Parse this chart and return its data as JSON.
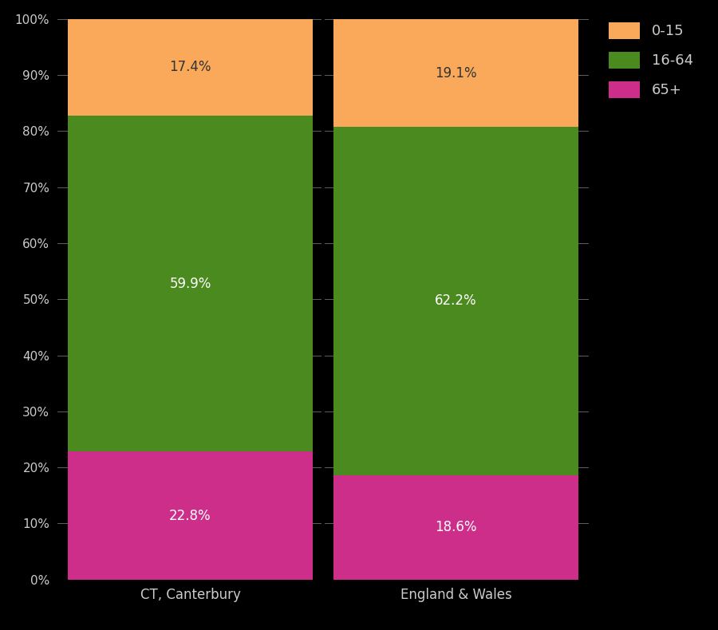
{
  "categories": [
    "CT, Canterbury",
    "England & Wales"
  ],
  "segments": {
    "65+": [
      22.8,
      18.6
    ],
    "16-64": [
      59.9,
      62.2
    ],
    "0-15": [
      17.4,
      19.1
    ]
  },
  "colors": {
    "65+": "#cc2e8a",
    "16-64": "#4a8a1e",
    "0-15": "#f9a959"
  },
  "segment_order": [
    "65+",
    "16-64",
    "0-15"
  ],
  "label_colors": {
    "65+": "white",
    "16-64": "white",
    "0-15": "#333333"
  },
  "background_color": "#000000",
  "text_color": "#cccccc",
  "yticks": [
    0,
    10,
    20,
    30,
    40,
    50,
    60,
    70,
    80,
    90,
    100
  ],
  "ytick_labels": [
    "0%",
    "10%",
    "20%",
    "30%",
    "40%",
    "50%",
    "60%",
    "70%",
    "80%",
    "90%",
    "100%"
  ],
  "legend_labels": [
    "0-15",
    "16-64",
    "65+"
  ],
  "legend_colors": [
    "#f9a959",
    "#4a8a1e",
    "#cc2e8a"
  ],
  "bar_width": 0.92,
  "figsize": [
    9.0,
    7.9
  ],
  "dpi": 100,
  "label_fontsize": 12,
  "tick_fontsize": 11,
  "xtick_fontsize": 12,
  "legend_fontsize": 13
}
